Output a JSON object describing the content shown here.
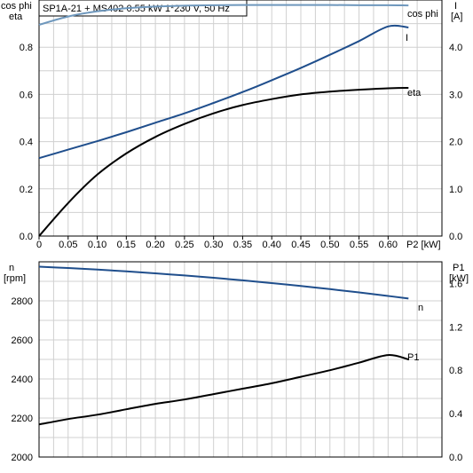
{
  "chart_data": [
    {
      "type": "line",
      "title": "SP1A-21 + MS402   0.55 kW   1*230 V, 50 Hz",
      "ylabel_left": [
        "cos phi",
        "eta"
      ],
      "ylabel_right": [
        "I",
        "[A]"
      ],
      "xlabel": "P2 [kW]",
      "xlim": [
        0,
        0.65
      ],
      "ylim_left": [
        0,
        1.0
      ],
      "ylim_right": [
        0,
        5.0
      ],
      "x_ticks": [
        "0",
        "0.05",
        "0.10",
        "0.15",
        "0.20",
        "0.25",
        "0.30",
        "0.35",
        "0.40",
        "0.45",
        "0.50",
        "0.55",
        "0.60"
      ],
      "y_ticks_left": [
        "0.0",
        "0.2",
        "0.4",
        "0.6",
        "0.8"
      ],
      "y_ticks_right": [
        "0.0",
        "1.0",
        "2.0",
        "3.0",
        "4.0"
      ],
      "grid": true,
      "series": [
        {
          "name": "cos phi",
          "axis": "left",
          "color": "#6f98bd",
          "x": [
            0,
            0.05,
            0.1,
            0.15,
            0.2,
            0.25,
            0.3,
            0.35,
            0.4,
            0.45,
            0.5,
            0.55,
            0.6,
            0.635
          ],
          "y": [
            0.895,
            0.93,
            0.952,
            0.965,
            0.972,
            0.976,
            0.978,
            0.979,
            0.979,
            0.979,
            0.979,
            0.978,
            0.978,
            0.977
          ]
        },
        {
          "name": "I",
          "axis": "right",
          "color": "#1f4e8c",
          "x": [
            0,
            0.05,
            0.1,
            0.15,
            0.2,
            0.25,
            0.3,
            0.35,
            0.4,
            0.45,
            0.5,
            0.55,
            0.6,
            0.635
          ],
          "y": [
            1.65,
            1.83,
            2.01,
            2.2,
            2.4,
            2.6,
            2.82,
            3.05,
            3.3,
            3.56,
            3.84,
            4.13,
            4.44,
            4.42
          ]
        },
        {
          "name": "eta",
          "axis": "left",
          "color": "#000000",
          "x": [
            0,
            0.05,
            0.1,
            0.15,
            0.2,
            0.25,
            0.3,
            0.35,
            0.4,
            0.45,
            0.5,
            0.55,
            0.6,
            0.635
          ],
          "y": [
            0.0,
            0.14,
            0.26,
            0.35,
            0.42,
            0.475,
            0.52,
            0.555,
            0.58,
            0.6,
            0.612,
            0.62,
            0.626,
            0.628
          ]
        }
      ]
    },
    {
      "type": "line",
      "ylabel_left": [
        "n",
        "[rpm]"
      ],
      "ylabel_right": [
        "P1",
        "[kW]"
      ],
      "xlim": [
        0,
        0.65
      ],
      "ylim_left": [
        2000,
        3000
      ],
      "ylim_right": [
        0,
        1.8
      ],
      "y_ticks_left": [
        "2000",
        "2200",
        "2400",
        "2600",
        "2800"
      ],
      "y_ticks_right": [
        "0.0",
        "0.4",
        "0.8",
        "1.2",
        "1.6"
      ],
      "grid": true,
      "series": [
        {
          "name": "n",
          "axis": "left",
          "color": "#1f4e8c",
          "x": [
            0,
            0.05,
            0.1,
            0.15,
            0.2,
            0.25,
            0.3,
            0.35,
            0.4,
            0.45,
            0.5,
            0.55,
            0.6,
            0.635
          ],
          "y": [
            2975,
            2968,
            2960,
            2951,
            2941,
            2930,
            2918,
            2905,
            2891,
            2876,
            2860,
            2843,
            2825,
            2812
          ]
        },
        {
          "name": "P1",
          "axis": "right",
          "color": "#000000",
          "x": [
            0,
            0.05,
            0.1,
            0.15,
            0.2,
            0.25,
            0.3,
            0.35,
            0.4,
            0.45,
            0.5,
            0.55,
            0.6,
            0.635
          ],
          "y": [
            0.3,
            0.35,
            0.39,
            0.44,
            0.49,
            0.53,
            0.58,
            0.63,
            0.68,
            0.74,
            0.8,
            0.87,
            0.94,
            0.9
          ]
        }
      ]
    }
  ]
}
